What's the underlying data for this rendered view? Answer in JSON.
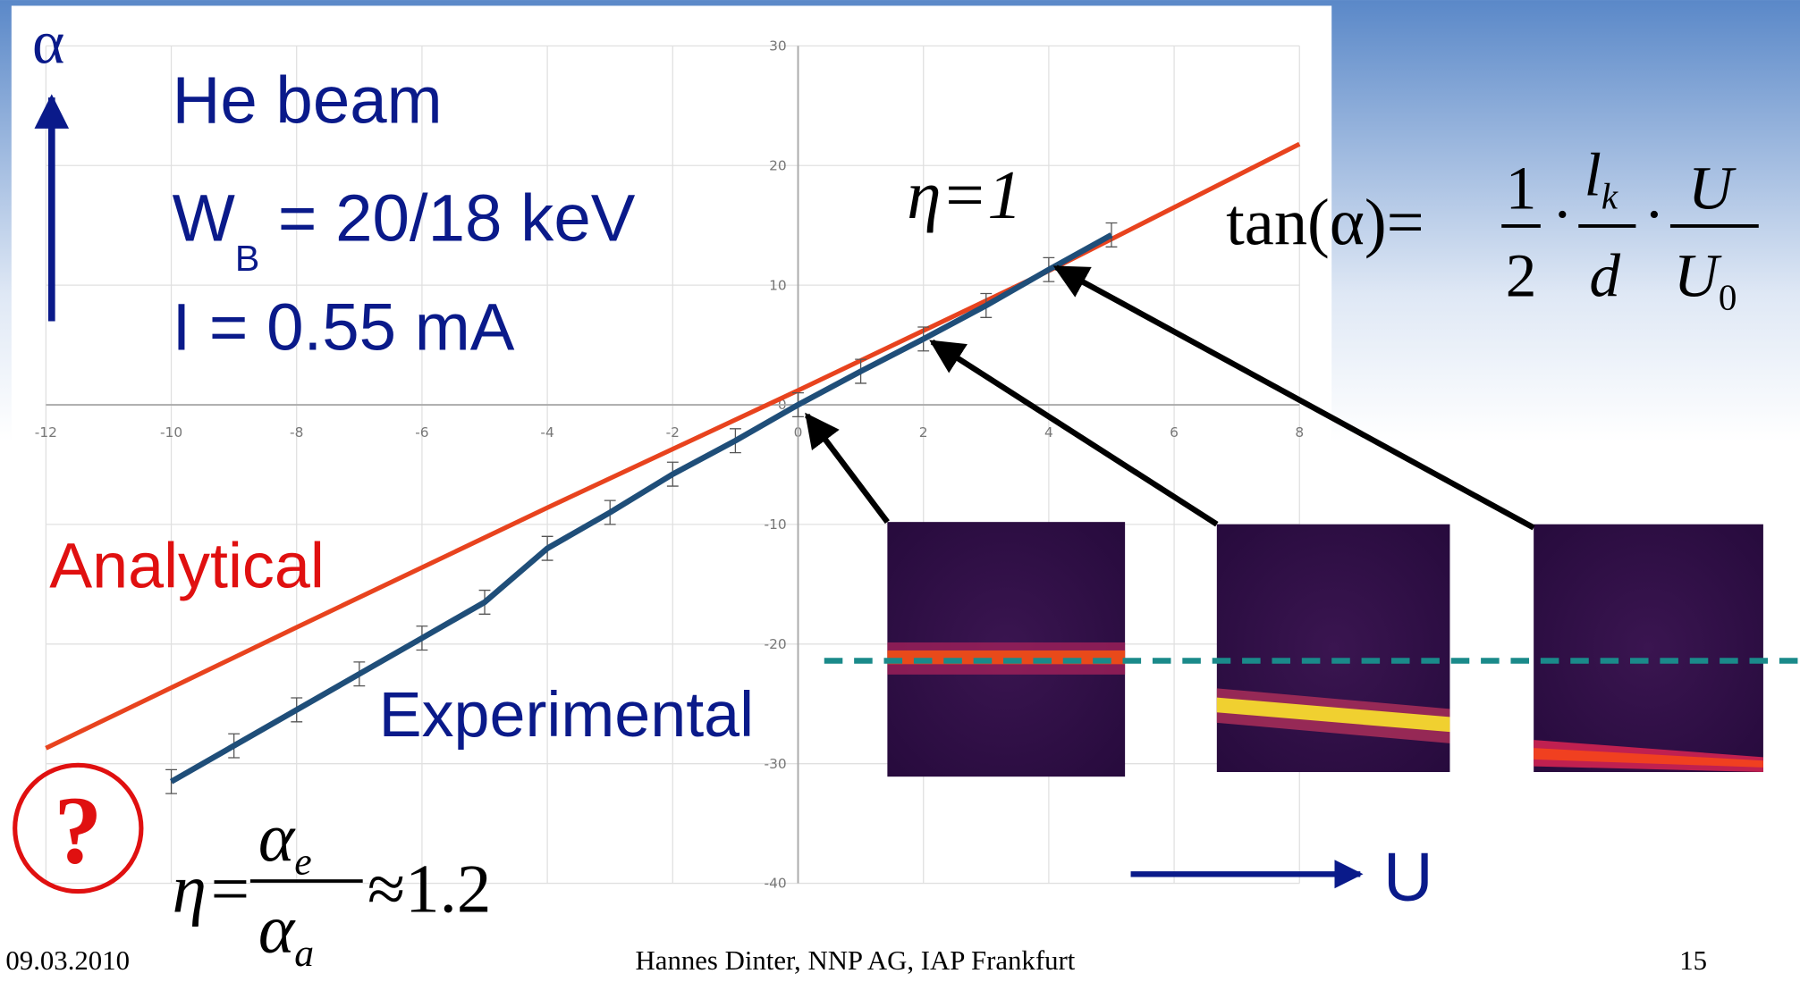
{
  "chart_data": {
    "type": "line",
    "xlim": [
      -12,
      8
    ],
    "ylim": [
      -40,
      30
    ],
    "xticks": [
      -12,
      -10,
      -8,
      -6,
      -4,
      -2,
      0,
      2,
      4,
      6,
      8
    ],
    "yticks": [
      -40,
      -30,
      -20,
      -10,
      0,
      10,
      20,
      30
    ],
    "grid": true,
    "series": [
      {
        "name": "Analytical",
        "color": "#e8431e",
        "x": [
          -12,
          -8,
          -4,
          0,
          4,
          8
        ],
        "values": [
          -28.7,
          -18.6,
          -8.6,
          1.2,
          11.2,
          21.8
        ]
      },
      {
        "name": "Experimental",
        "color": "#1f4e79",
        "x": [
          -10,
          -9,
          -8,
          -7,
          -6,
          -5,
          -4,
          -3,
          -2,
          -1,
          0,
          1,
          2,
          3,
          4,
          5
        ],
        "values": [
          -31.5,
          -28.5,
          -25.5,
          -22.5,
          -19.5,
          -16.5,
          -12,
          -9,
          -5.8,
          -3,
          0,
          2.8,
          5.5,
          8.3,
          11.3,
          14.2
        ],
        "errors": [
          1,
          1,
          1,
          1,
          1,
          1,
          1,
          1,
          1,
          1,
          1,
          1,
          1,
          1,
          1,
          1
        ]
      }
    ]
  },
  "slide": {
    "axis_symbol": "α",
    "beam": "He beam",
    "energy": {
      "main": "W",
      "sub": "B",
      "rest": " = 20/18 keV"
    },
    "current": "I = 0.55 mA",
    "eta_label": "η=1",
    "formula": {
      "lhs": "tan(α)=",
      "dot": "·",
      "f1": {
        "num": "1",
        "den": "2"
      },
      "f2": {
        "num": "l",
        "num_sub": "k",
        "den": "d"
      },
      "f3": {
        "num": "U",
        "den": "U",
        "den_sub": "0"
      }
    },
    "question": "?",
    "eta_ratio": {
      "lhs": "η=",
      "num": "α",
      "num_sub": "e",
      "den": "α",
      "den_sub": "a",
      "rhs": "≈1.2"
    },
    "u_label": "U",
    "footer": {
      "date": "09.03.2010",
      "author": "Hannes Dinter, NNP AG, IAP Frankfurt",
      "page": "15"
    }
  }
}
